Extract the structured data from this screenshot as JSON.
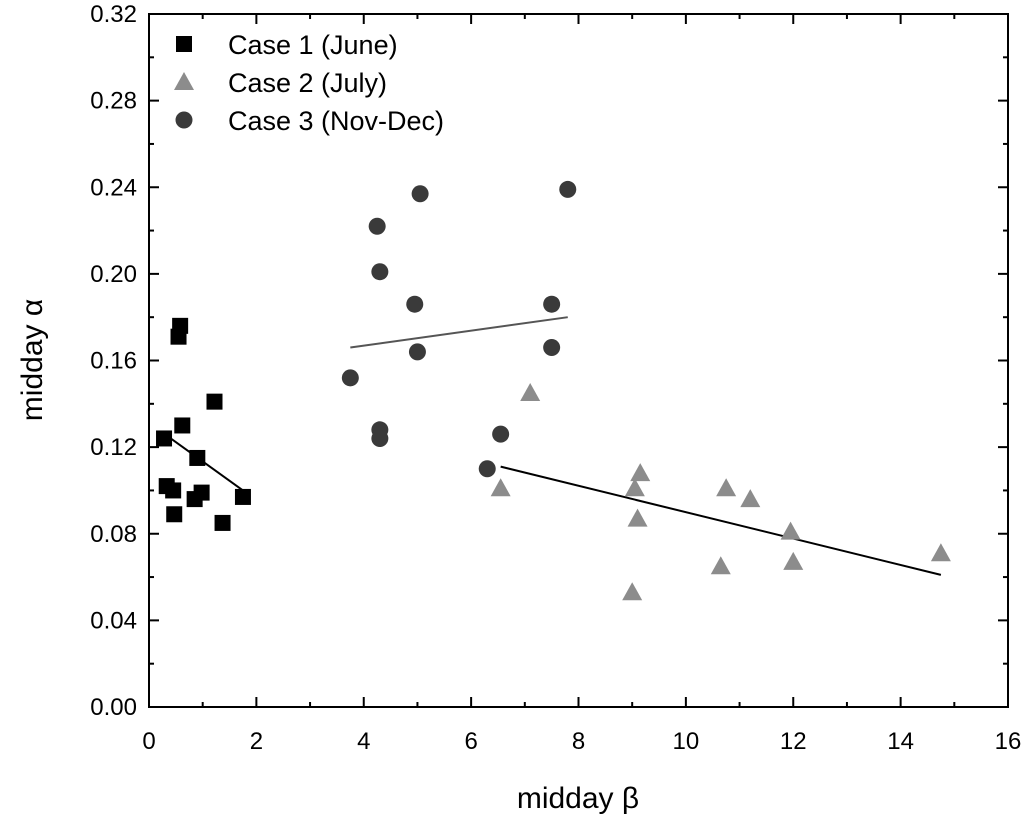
{
  "chart_data": {
    "type": "scatter",
    "xlabel": "midday β",
    "ylabel": "midday α",
    "xlim": [
      0,
      16
    ],
    "ylim": [
      0,
      0.32
    ],
    "x_ticks": [
      "0",
      "2",
      "4",
      "6",
      "8",
      "10",
      "12",
      "14",
      "16"
    ],
    "y_ticks": [
      "0.00",
      "0.04",
      "0.08",
      "0.12",
      "0.16",
      "0.20",
      "0.24",
      "0.28",
      "0.32"
    ],
    "legend_position": "top-left",
    "grid": false,
    "series": [
      {
        "name": "Case 1 (June)",
        "marker": "square",
        "color": "#000000",
        "points": [
          [
            0.28,
            0.124
          ],
          [
            0.33,
            0.102
          ],
          [
            0.45,
            0.1
          ],
          [
            0.47,
            0.089
          ],
          [
            0.55,
            0.171
          ],
          [
            0.58,
            0.176
          ],
          [
            0.62,
            0.13
          ],
          [
            0.85,
            0.096
          ],
          [
            0.9,
            0.115
          ],
          [
            0.98,
            0.099
          ],
          [
            1.22,
            0.141
          ],
          [
            1.37,
            0.085
          ],
          [
            1.75,
            0.097
          ]
        ],
        "fit": [
          [
            0.35,
            0.125
          ],
          [
            1.75,
            0.1
          ]
        ]
      },
      {
        "name": "Case 2 (July)",
        "marker": "triangle",
        "color": "#8c8c8c",
        "points": [
          [
            6.55,
            0.101
          ],
          [
            7.1,
            0.145
          ],
          [
            9.0,
            0.053
          ],
          [
            9.05,
            0.101
          ],
          [
            9.1,
            0.087
          ],
          [
            9.15,
            0.108
          ],
          [
            10.65,
            0.065
          ],
          [
            10.75,
            0.101
          ],
          [
            11.2,
            0.096
          ],
          [
            11.95,
            0.081
          ],
          [
            12.0,
            0.067
          ],
          [
            14.75,
            0.071
          ]
        ],
        "fit": [
          [
            6.55,
            0.111
          ],
          [
            14.75,
            0.061
          ]
        ]
      },
      {
        "name": "Case 3 (Nov-Dec)",
        "marker": "circle",
        "color": "#3a3a3a",
        "points": [
          [
            3.75,
            0.152
          ],
          [
            4.25,
            0.222
          ],
          [
            4.3,
            0.201
          ],
          [
            4.3,
            0.128
          ],
          [
            4.3,
            0.124
          ],
          [
            4.95,
            0.186
          ],
          [
            5.0,
            0.164
          ],
          [
            5.05,
            0.237
          ],
          [
            6.3,
            0.11
          ],
          [
            6.55,
            0.126
          ],
          [
            7.5,
            0.186
          ],
          [
            7.5,
            0.166
          ],
          [
            7.8,
            0.239
          ]
        ],
        "fit": [
          [
            3.75,
            0.166
          ],
          [
            7.8,
            0.18
          ]
        ]
      }
    ]
  }
}
